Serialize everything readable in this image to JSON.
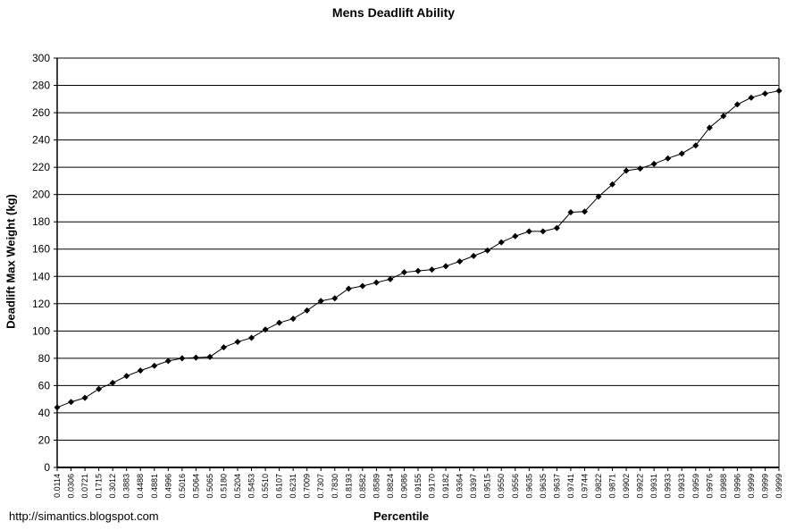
{
  "footer": {
    "url": "http://simantics.blogspot.com"
  },
  "chart_data": {
    "type": "line",
    "title": "Mens Deadlift Ability",
    "xlabel": "Percentile",
    "ylabel": "Deadlift Max Weight (kg)",
    "ylim": [
      0,
      300
    ],
    "yticks": [
      0,
      20,
      40,
      60,
      80,
      100,
      120,
      140,
      160,
      180,
      200,
      220,
      240,
      260,
      280,
      300
    ],
    "grid": "horizontal",
    "legend": "none",
    "marker": "diamond",
    "categories": [
      "0.0114",
      "0.0306",
      "0.0721",
      "0.1715",
      "0.3012",
      "0.3883",
      "0.4488",
      "0.4881",
      "0.4996",
      "0.5016",
      "0.5064",
      "0.5065",
      "0.5180",
      "0.5204",
      "0.5453",
      "0.5510",
      "0.6107",
      "0.6231",
      "0.7009",
      "0.7307",
      "0.7830",
      "0.8193",
      "0.8582",
      "0.8589",
      "0.8824",
      "0.9086",
      "0.9155",
      "0.9170",
      "0.9182",
      "0.9364",
      "0.9397",
      "0.9515",
      "0.9550",
      "0.9556",
      "0.9635",
      "0.9635",
      "0.9637",
      "0.9741",
      "0.9744",
      "0.9822",
      "0.9871",
      "0.9902",
      "0.9922",
      "0.9931",
      "0.9933",
      "0.9933",
      "0.9959",
      "0.9976",
      "0.9988",
      "0.9996",
      "0.9999",
      "0.9999",
      "0.9999"
    ],
    "series": [
      {
        "name": "Deadlift Max Weight (kg)",
        "values": [
          44,
          48,
          51,
          57.5,
          62,
          67,
          71,
          74.5,
          78,
          80,
          80.5,
          81,
          88,
          92,
          95,
          101,
          106,
          109,
          115,
          122,
          124,
          131,
          133,
          135.5,
          138,
          143,
          144,
          145,
          147.5,
          151,
          155,
          159,
          165,
          169.5,
          173,
          173,
          175.5,
          187,
          187.5,
          198.5,
          207.5,
          217.5,
          219,
          222.5,
          226.5,
          230,
          236,
          249,
          257.5,
          266,
          271,
          274,
          276
        ]
      }
    ]
  }
}
